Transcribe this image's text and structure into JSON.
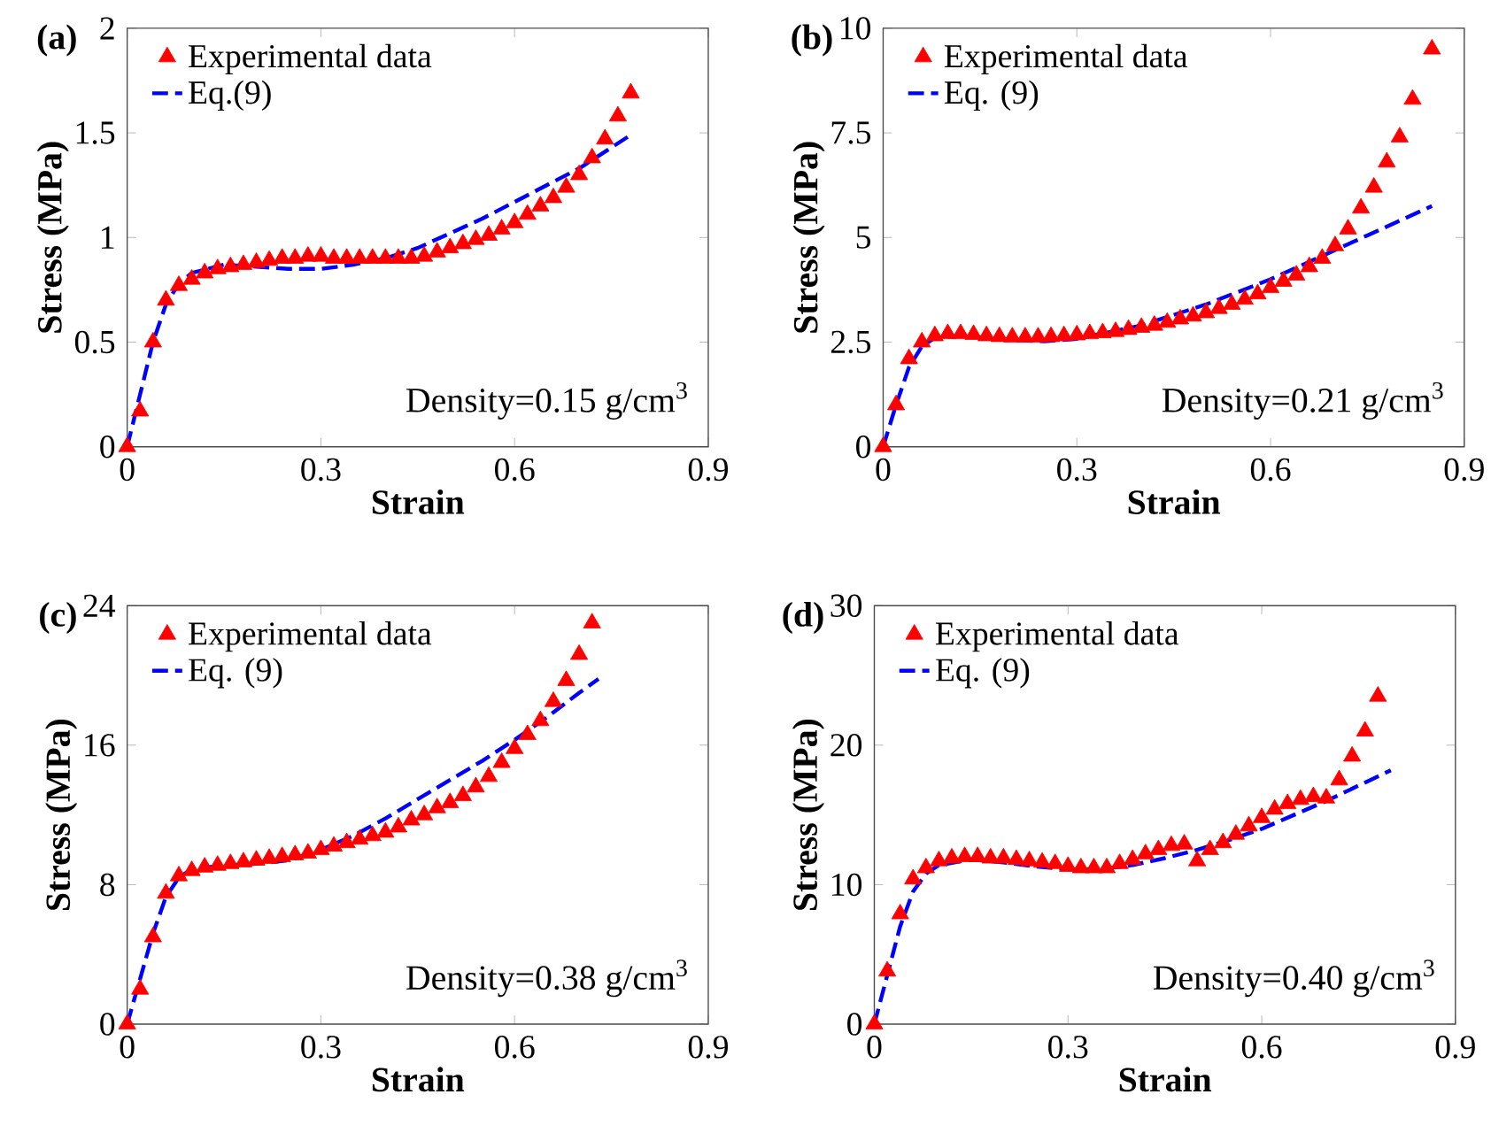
{
  "chart_data": [
    {
      "type": "scatter",
      "xlabel": "Strain",
      "ylabel": "Stress (MPa)",
      "xlim": [
        0,
        0.9
      ],
      "ylim": [
        0,
        2
      ],
      "xticks": [
        0,
        0.3,
        0.6,
        0.9
      ],
      "yticks": [
        0,
        0.5,
        1,
        1.5,
        2
      ],
      "legend": "top left",
      "annotations": [
        "(a)",
        "Density=0.15 g/cm$^{3}$"
      ],
      "series": [
        {
          "name": "Experimental data",
          "marker": "triangle",
          "color": "#ff0000",
          "x": [
            0,
            0.02,
            0.04,
            0.06,
            0.08,
            0.1,
            0.12,
            0.14,
            0.16,
            0.18,
            0.2,
            0.22,
            0.24,
            0.26,
            0.28,
            0.3,
            0.32,
            0.34,
            0.36,
            0.38,
            0.4,
            0.42,
            0.44,
            0.46,
            0.48,
            0.5,
            0.52,
            0.54,
            0.56,
            0.58,
            0.6,
            0.62,
            0.64,
            0.66,
            0.68,
            0.7,
            0.72,
            0.74,
            0.76,
            0.78
          ],
          "values": [
            0,
            0.17,
            0.5,
            0.7,
            0.77,
            0.8,
            0.83,
            0.85,
            0.86,
            0.87,
            0.88,
            0.89,
            0.9,
            0.9,
            0.91,
            0.91,
            0.9,
            0.9,
            0.9,
            0.9,
            0.9,
            0.9,
            0.9,
            0.91,
            0.93,
            0.95,
            0.97,
            0.99,
            1.01,
            1.04,
            1.07,
            1.11,
            1.15,
            1.19,
            1.24,
            1.3,
            1.38,
            1.47,
            1.58,
            1.69
          ]
        },
        {
          "name": "Eq.(9)",
          "type": "line",
          "line_style": "dashed",
          "color": "#0000ff",
          "x": [
            0,
            0.02,
            0.04,
            0.06,
            0.08,
            0.1,
            0.15,
            0.2,
            0.25,
            0.3,
            0.35,
            0.4,
            0.45,
            0.5,
            0.55,
            0.6,
            0.65,
            0.7,
            0.75,
            0.78
          ],
          "values": [
            0,
            0.25,
            0.5,
            0.68,
            0.78,
            0.83,
            0.87,
            0.86,
            0.85,
            0.85,
            0.87,
            0.9,
            0.95,
            1.02,
            1.09,
            1.17,
            1.25,
            1.33,
            1.43,
            1.49
          ]
        }
      ]
    },
    {
      "type": "scatter",
      "xlabel": "Strain",
      "ylabel": "Stress (MPa)",
      "xlim": [
        0,
        0.9
      ],
      "ylim": [
        0,
        10
      ],
      "xticks": [
        0,
        0.3,
        0.6,
        0.9
      ],
      "yticks": [
        0,
        2.5,
        5,
        7.5,
        10
      ],
      "legend": "top left",
      "annotations": [
        "(b)",
        "Density=0.21 g/cm$^{3}$"
      ],
      "series": [
        {
          "name": "Experimental data",
          "marker": "triangle",
          "color": "#ff0000",
          "x": [
            0,
            0.02,
            0.04,
            0.06,
            0.08,
            0.1,
            0.12,
            0.14,
            0.16,
            0.18,
            0.2,
            0.22,
            0.24,
            0.26,
            0.28,
            0.3,
            0.32,
            0.34,
            0.36,
            0.38,
            0.4,
            0.42,
            0.44,
            0.46,
            0.48,
            0.5,
            0.52,
            0.54,
            0.56,
            0.58,
            0.6,
            0.62,
            0.64,
            0.66,
            0.68,
            0.7,
            0.72,
            0.74,
            0.76,
            0.78,
            0.8,
            0.82,
            0.85
          ],
          "values": [
            0,
            1.0,
            2.1,
            2.5,
            2.65,
            2.7,
            2.7,
            2.68,
            2.65,
            2.63,
            2.62,
            2.62,
            2.62,
            2.63,
            2.65,
            2.67,
            2.7,
            2.72,
            2.75,
            2.8,
            2.85,
            2.9,
            2.97,
            3.05,
            3.12,
            3.2,
            3.3,
            3.4,
            3.52,
            3.65,
            3.8,
            3.95,
            4.1,
            4.3,
            4.5,
            4.8,
            5.2,
            5.7,
            6.2,
            6.8,
            7.4,
            8.3,
            9.5
          ]
        },
        {
          "name": "Eq. (9)",
          "type": "line",
          "line_style": "dashed",
          "color": "#0000ff",
          "x": [
            0,
            0.02,
            0.04,
            0.06,
            0.08,
            0.12,
            0.2,
            0.25,
            0.3,
            0.4,
            0.5,
            0.6,
            0.7,
            0.75,
            0.85
          ],
          "values": [
            0,
            1.0,
            1.9,
            2.4,
            2.6,
            2.65,
            2.55,
            2.52,
            2.58,
            2.9,
            3.4,
            4.0,
            4.7,
            5.05,
            5.75
          ]
        }
      ]
    },
    {
      "type": "scatter",
      "xlabel": "Strain",
      "ylabel": "Stress (MPa)",
      "xlim": [
        0,
        0.9
      ],
      "ylim": [
        0,
        24
      ],
      "xticks": [
        0,
        0.3,
        0.6,
        0.9
      ],
      "yticks": [
        0,
        8,
        16,
        24
      ],
      "legend": "top left",
      "annotations": [
        "(c)",
        "Density=0.38 g/cm$^{3}$"
      ],
      "series": [
        {
          "name": "Experimental data",
          "marker": "triangle",
          "color": "#ff0000",
          "x": [
            0,
            0.02,
            0.04,
            0.06,
            0.08,
            0.1,
            0.12,
            0.14,
            0.16,
            0.18,
            0.2,
            0.22,
            0.24,
            0.26,
            0.28,
            0.3,
            0.32,
            0.34,
            0.36,
            0.38,
            0.4,
            0.42,
            0.44,
            0.46,
            0.48,
            0.5,
            0.52,
            0.54,
            0.56,
            0.58,
            0.6,
            0.62,
            0.64,
            0.66,
            0.68,
            0.7,
            0.72
          ],
          "values": [
            0,
            2.0,
            5.0,
            7.5,
            8.5,
            8.8,
            9.0,
            9.1,
            9.2,
            9.3,
            9.4,
            9.5,
            9.6,
            9.7,
            9.8,
            10.0,
            10.2,
            10.4,
            10.6,
            10.8,
            11.0,
            11.3,
            11.7,
            12.0,
            12.4,
            12.7,
            13.1,
            13.6,
            14.2,
            15.0,
            15.8,
            16.6,
            17.4,
            18.5,
            19.7,
            21.2,
            23.0
          ]
        },
        {
          "name": "Eq. (9)",
          "type": "line",
          "line_style": "dashed",
          "color": "#0000ff",
          "x": [
            0,
            0.02,
            0.04,
            0.06,
            0.08,
            0.1,
            0.15,
            0.2,
            0.25,
            0.3,
            0.35,
            0.4,
            0.45,
            0.5,
            0.55,
            0.6,
            0.65,
            0.7,
            0.73
          ],
          "values": [
            0,
            2.6,
            5.2,
            7.3,
            8.4,
            8.9,
            9.1,
            9.2,
            9.4,
            10.0,
            10.8,
            11.8,
            12.9,
            14.0,
            15.1,
            16.3,
            17.6,
            19.0,
            19.8
          ]
        }
      ]
    },
    {
      "type": "scatter",
      "xlabel": "Strain",
      "ylabel": "Stress (MPa)",
      "xlim": [
        0,
        0.9
      ],
      "ylim": [
        0,
        30
      ],
      "xticks": [
        0,
        0.3,
        0.6,
        0.9
      ],
      "yticks": [
        0,
        10,
        20,
        30
      ],
      "legend": "top left",
      "annotations": [
        "(d)",
        "Density=0.40 g/cm$^{3}$"
      ],
      "series": [
        {
          "name": "Experimental data",
          "marker": "triangle",
          "color": "#ff0000",
          "x": [
            0,
            0.02,
            0.04,
            0.06,
            0.08,
            0.1,
            0.12,
            0.14,
            0.16,
            0.18,
            0.2,
            0.22,
            0.24,
            0.26,
            0.28,
            0.3,
            0.32,
            0.34,
            0.36,
            0.38,
            0.4,
            0.42,
            0.44,
            0.46,
            0.48,
            0.5,
            0.52,
            0.54,
            0.56,
            0.58,
            0.6,
            0.62,
            0.64,
            0.66,
            0.68,
            0.7,
            0.72,
            0.74,
            0.76,
            0.78
          ],
          "values": [
            0,
            3.8,
            7.9,
            10.4,
            11.2,
            11.7,
            11.9,
            12.0,
            12.0,
            11.9,
            11.9,
            11.8,
            11.7,
            11.6,
            11.5,
            11.3,
            11.2,
            11.2,
            11.2,
            11.5,
            11.8,
            12.2,
            12.5,
            12.8,
            12.9,
            11.7,
            12.5,
            13.0,
            13.6,
            14.2,
            14.8,
            15.4,
            15.8,
            16.1,
            16.3,
            16.2,
            17.5,
            19.2,
            21.0,
            23.5
          ]
        },
        {
          "name": "Eq. (9)",
          "type": "line",
          "line_style": "dashed",
          "color": "#0000ff",
          "x": [
            0,
            0.02,
            0.04,
            0.06,
            0.08,
            0.1,
            0.15,
            0.2,
            0.25,
            0.3,
            0.35,
            0.4,
            0.45,
            0.5,
            0.55,
            0.6,
            0.65,
            0.7,
            0.75,
            0.8
          ],
          "values": [
            0,
            3.5,
            7.0,
            9.5,
            10.8,
            11.4,
            11.8,
            11.6,
            11.3,
            11.1,
            11.1,
            11.4,
            11.9,
            12.5,
            13.2,
            14.0,
            15.0,
            16.0,
            17.1,
            18.2
          ]
        }
      ]
    }
  ]
}
